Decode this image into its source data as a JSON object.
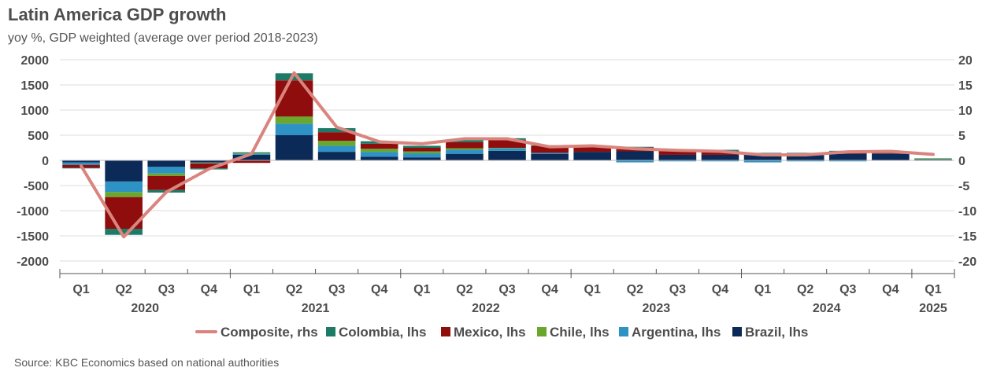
{
  "header": {
    "title": "Latin America GDP growth",
    "subtitle": "yoy %, GDP weighted (average over period 2018-2023)"
  },
  "footer": {
    "source": "Source: KBC Economics based on national authorities"
  },
  "colors": {
    "Brazil": "#0b2a57",
    "Argentina": "#2e92c4",
    "Chile": "#6aa72d",
    "Mexico": "#8f0d0d",
    "Colombia": "#1d7a66",
    "Composite": "#d9857e",
    "grid": "#dddddd",
    "axis": "#555555"
  },
  "chart_data": {
    "type": "bar",
    "stacked": true,
    "title": "Latin America GDP growth",
    "subtitle": "yoy %, GDP weighted (average over period 2018-2023)",
    "categories": [
      "Q1",
      "Q2",
      "Q3",
      "Q4",
      "Q1",
      "Q2",
      "Q3",
      "Q4",
      "Q1",
      "Q2",
      "Q3",
      "Q4",
      "Q1",
      "Q2",
      "Q3",
      "Q4",
      "Q1",
      "Q2",
      "Q3",
      "Q4",
      "Q1"
    ],
    "years": [
      {
        "label": "2020",
        "start": 0,
        "end": 3
      },
      {
        "label": "2021",
        "start": 4,
        "end": 7
      },
      {
        "label": "2022",
        "start": 8,
        "end": 11
      },
      {
        "label": "2023",
        "start": 12,
        "end": 15
      },
      {
        "label": "2024",
        "start": 16,
        "end": 19
      },
      {
        "label": "2025",
        "start": 20,
        "end": 20
      }
    ],
    "ylim_left": [
      -2000,
      2000
    ],
    "yticks_left": [
      -2000,
      -1500,
      -1000,
      -500,
      0,
      500,
      1000,
      1500,
      2000
    ],
    "ylim_right": [
      -20,
      20
    ],
    "yticks_right": [
      -20,
      -15,
      -10,
      -5,
      0,
      5,
      10,
      15,
      20
    ],
    "grid": true,
    "legend_position": "bottom",
    "series": [
      {
        "name": "Brazil, lhs",
        "key": "Brazil",
        "axis": "left",
        "kind": "bar",
        "values": [
          -40,
          -420,
          -130,
          -40,
          110,
          500,
          170,
          70,
          60,
          130,
          190,
          130,
          170,
          180,
          110,
          110,
          110,
          120,
          130,
          130,
          20
        ]
      },
      {
        "name": "Argentina, lhs",
        "key": "Argentina",
        "axis": "left",
        "kind": "bar",
        "values": [
          -50,
          -210,
          -130,
          -10,
          20,
          230,
          120,
          100,
          80,
          80,
          50,
          20,
          0,
          -40,
          -20,
          -20,
          -40,
          -20,
          -20,
          0,
          0
        ]
      },
      {
        "name": "Chile, lhs",
        "key": "Chile",
        "axis": "left",
        "kind": "bar",
        "values": [
          0,
          -100,
          -50,
          -10,
          10,
          140,
          100,
          60,
          40,
          30,
          10,
          -10,
          0,
          0,
          0,
          0,
          0,
          0,
          0,
          0,
          10
        ]
      },
      {
        "name": "Mexico, lhs",
        "key": "Mexico",
        "axis": "left",
        "kind": "bar",
        "values": [
          -60,
          -630,
          -280,
          -100,
          -50,
          720,
          170,
          100,
          70,
          120,
          160,
          140,
          110,
          80,
          90,
          80,
          30,
          20,
          40,
          10,
          0
        ]
      },
      {
        "name": "Colombia, lhs",
        "key": "Colombia",
        "axis": "left",
        "kind": "bar",
        "values": [
          -10,
          -120,
          -50,
          -20,
          20,
          140,
          80,
          50,
          40,
          40,
          30,
          10,
          10,
          10,
          20,
          20,
          10,
          10,
          20,
          10,
          10
        ]
      },
      {
        "name": "Composite, rhs",
        "key": "Composite",
        "axis": "right",
        "kind": "line",
        "values": [
          -1.1,
          -15.2,
          -6.3,
          -1.7,
          1.3,
          17.4,
          6.6,
          3.7,
          3.3,
          4.3,
          4.3,
          2.7,
          2.9,
          2.3,
          2.0,
          1.8,
          1.1,
          1.1,
          1.7,
          1.8,
          1.2
        ]
      }
    ],
    "legend": [
      {
        "label": "Composite, rhs",
        "key": "Composite",
        "shape": "line"
      },
      {
        "label": "Colombia, lhs",
        "key": "Colombia",
        "shape": "box"
      },
      {
        "label": "Mexico, lhs",
        "key": "Mexico",
        "shape": "box"
      },
      {
        "label": "Chile, lhs",
        "key": "Chile",
        "shape": "box"
      },
      {
        "label": "Argentina, lhs",
        "key": "Argentina",
        "shape": "box"
      },
      {
        "label": "Brazil, lhs",
        "key": "Brazil",
        "shape": "box"
      }
    ]
  }
}
